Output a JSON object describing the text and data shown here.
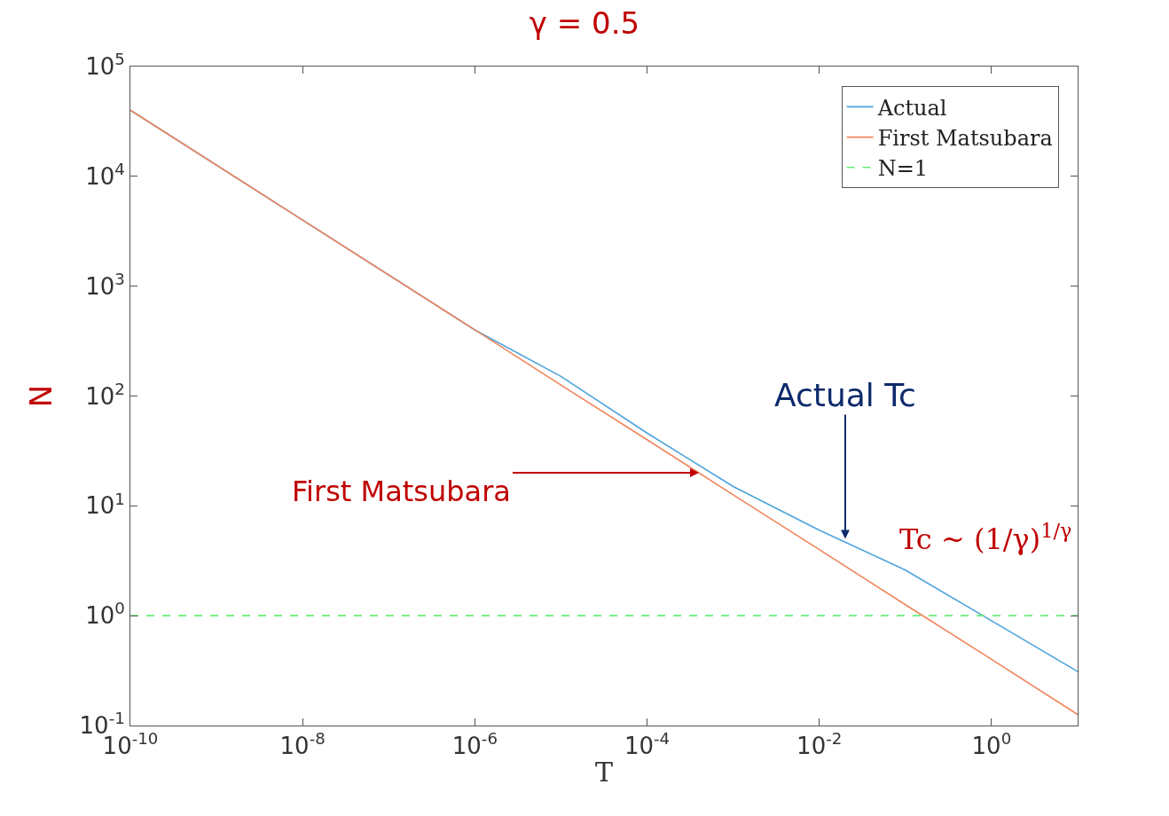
{
  "chart_data": {
    "type": "line",
    "title": "γ = 0.5",
    "xlabel": "T",
    "ylabel": "N",
    "log": "xy",
    "grid": false,
    "legend": "top right",
    "line_style": "solid",
    "marker": "none",
    "xlim": [
      1e-10,
      10
    ],
    "ylim": [
      0.1,
      100000
    ],
    "xticks": [
      {
        "value": 1e-10,
        "label": "10$^{-10}$"
      },
      {
        "value": 1e-08,
        "label": "10$^{-8}$"
      },
      {
        "value": 1e-06,
        "label": "10$^{-6}$"
      },
      {
        "value": 0.0001,
        "label": "10$^{-4}$"
      },
      {
        "value": 0.01,
        "label": "10$^{-2}$"
      },
      {
        "value": 1,
        "label": "10$^{0}$"
      }
    ],
    "yticks": [
      {
        "value": 0.1,
        "label": "10$^{-1}$"
      },
      {
        "value": 1,
        "label": "10$^{0}$"
      },
      {
        "value": 10,
        "label": "10$^{1}$"
      },
      {
        "value": 100,
        "label": "10$^{2}$"
      },
      {
        "value": 1000,
        "label": "10$^{3}$"
      },
      {
        "value": 10000,
        "label": "10$^{4}$"
      },
      {
        "value": 100000,
        "label": "10$^{5}$"
      }
    ],
    "series": [
      {
        "name": "Actual",
        "color": "#4da3dc",
        "x": [
          1e-10,
          1e-08,
          1e-06,
          1e-05,
          0.0001,
          0.001,
          0.01,
          0.1,
          1,
          10
        ],
        "values": [
          40000,
          4000,
          400,
          151,
          46,
          15,
          6,
          2.6,
          0.9,
          0.31
        ]
      },
      {
        "name": "First Matsubara",
        "color": "#f0845a",
        "x": [
          1e-10,
          1e-08,
          1e-06,
          1e-05,
          0.0001,
          0.001,
          0.01,
          0.1,
          1,
          10
        ],
        "values": [
          40000,
          4000,
          400,
          126,
          40,
          12.6,
          4,
          1.26,
          0.4,
          0.126
        ]
      },
      {
        "name": "N=1",
        "color": "#66ee77",
        "line_style": "dashed",
        "x": [
          1e-10,
          10
        ],
        "values": [
          1,
          1
        ]
      }
    ],
    "annotations": [
      {
        "text": "Actual Tc",
        "x": 0.02,
        "y": 5
      },
      {
        "text": "First Matsubara",
        "x": 0.0004,
        "y": 20
      },
      "Tc ~ (1/γ)$^{1/γ}$"
    ]
  }
}
